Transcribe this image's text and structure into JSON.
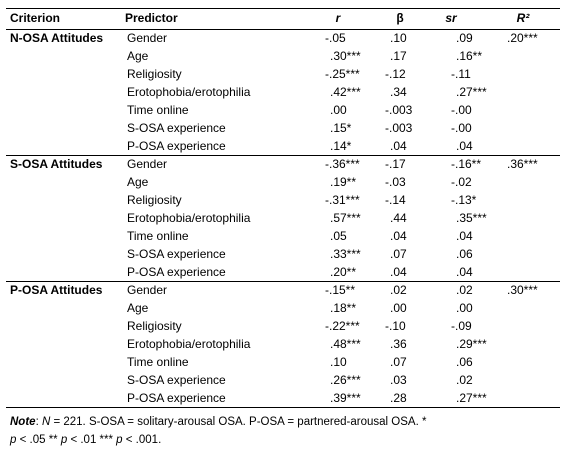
{
  "table": {
    "header": [
      "Criterion",
      "Predictor",
      "r",
      "β",
      "sr",
      "R²"
    ],
    "groups": [
      {
        "criterion": "N-OSA Attitudes",
        "r2": ".20***",
        "rows": [
          [
            "Gender",
            "-.05",
            ".10",
            ".09"
          ],
          [
            "Age",
            ".30***",
            ".17",
            ".16**"
          ],
          [
            "Religiosity",
            "-.25***",
            "-.12",
            "-.11"
          ],
          [
            "Erotophobia/erotophilia",
            ".42***",
            ".34",
            ".27***"
          ],
          [
            "Time online",
            ".00",
            "-.003",
            "-.00"
          ],
          [
            "S-OSA experience",
            ".15*",
            "-.003",
            "-.00"
          ],
          [
            "P-OSA experience",
            ".14*",
            ".04",
            ".04"
          ]
        ]
      },
      {
        "criterion": "S-OSA Attitudes",
        "r2": ".36***",
        "rows": [
          [
            "Gender",
            "-.36***",
            "-.17",
            "-.16**"
          ],
          [
            "Age",
            ".19**",
            "-.03",
            "-.02"
          ],
          [
            "Religiosity",
            "-.31***",
            "-.14",
            "-.13*"
          ],
          [
            "Erotophobia/erotophilia",
            ".57***",
            ".44",
            ".35***"
          ],
          [
            "Time online",
            ".05",
            ".04",
            ".04"
          ],
          [
            "S-OSA experience",
            ".33***",
            ".07",
            ".06"
          ],
          [
            "P-OSA experience",
            ".20**",
            ".04",
            ".04"
          ]
        ]
      },
      {
        "criterion": "P-OSA Attitudes",
        "r2": ".30***",
        "rows": [
          [
            "Gender",
            "-.15**",
            ".02",
            ".02"
          ],
          [
            "Age",
            ".18**",
            ".00",
            ".00"
          ],
          [
            "Religiosity",
            "-.22***",
            "-.10",
            "-.09"
          ],
          [
            "Erotophobia/erotophilia",
            ".48***",
            ".36",
            ".29***"
          ],
          [
            "Time online",
            ".10",
            ".07",
            ".06"
          ],
          [
            "S-OSA experience",
            ".26***",
            ".03",
            ".02"
          ],
          [
            "P-OSA experience",
            ".39***",
            ".28",
            ".27***"
          ]
        ]
      }
    ]
  },
  "note": [
    "Note",
    ": ",
    "N",
    " = 221. S-OSA = solitary-arousal OSA. P-OSA = partnered-arousal OSA. * ",
    "p",
    " < .05  ** ",
    "p",
    " < .01 *** ",
    "p",
    " < .001."
  ]
}
